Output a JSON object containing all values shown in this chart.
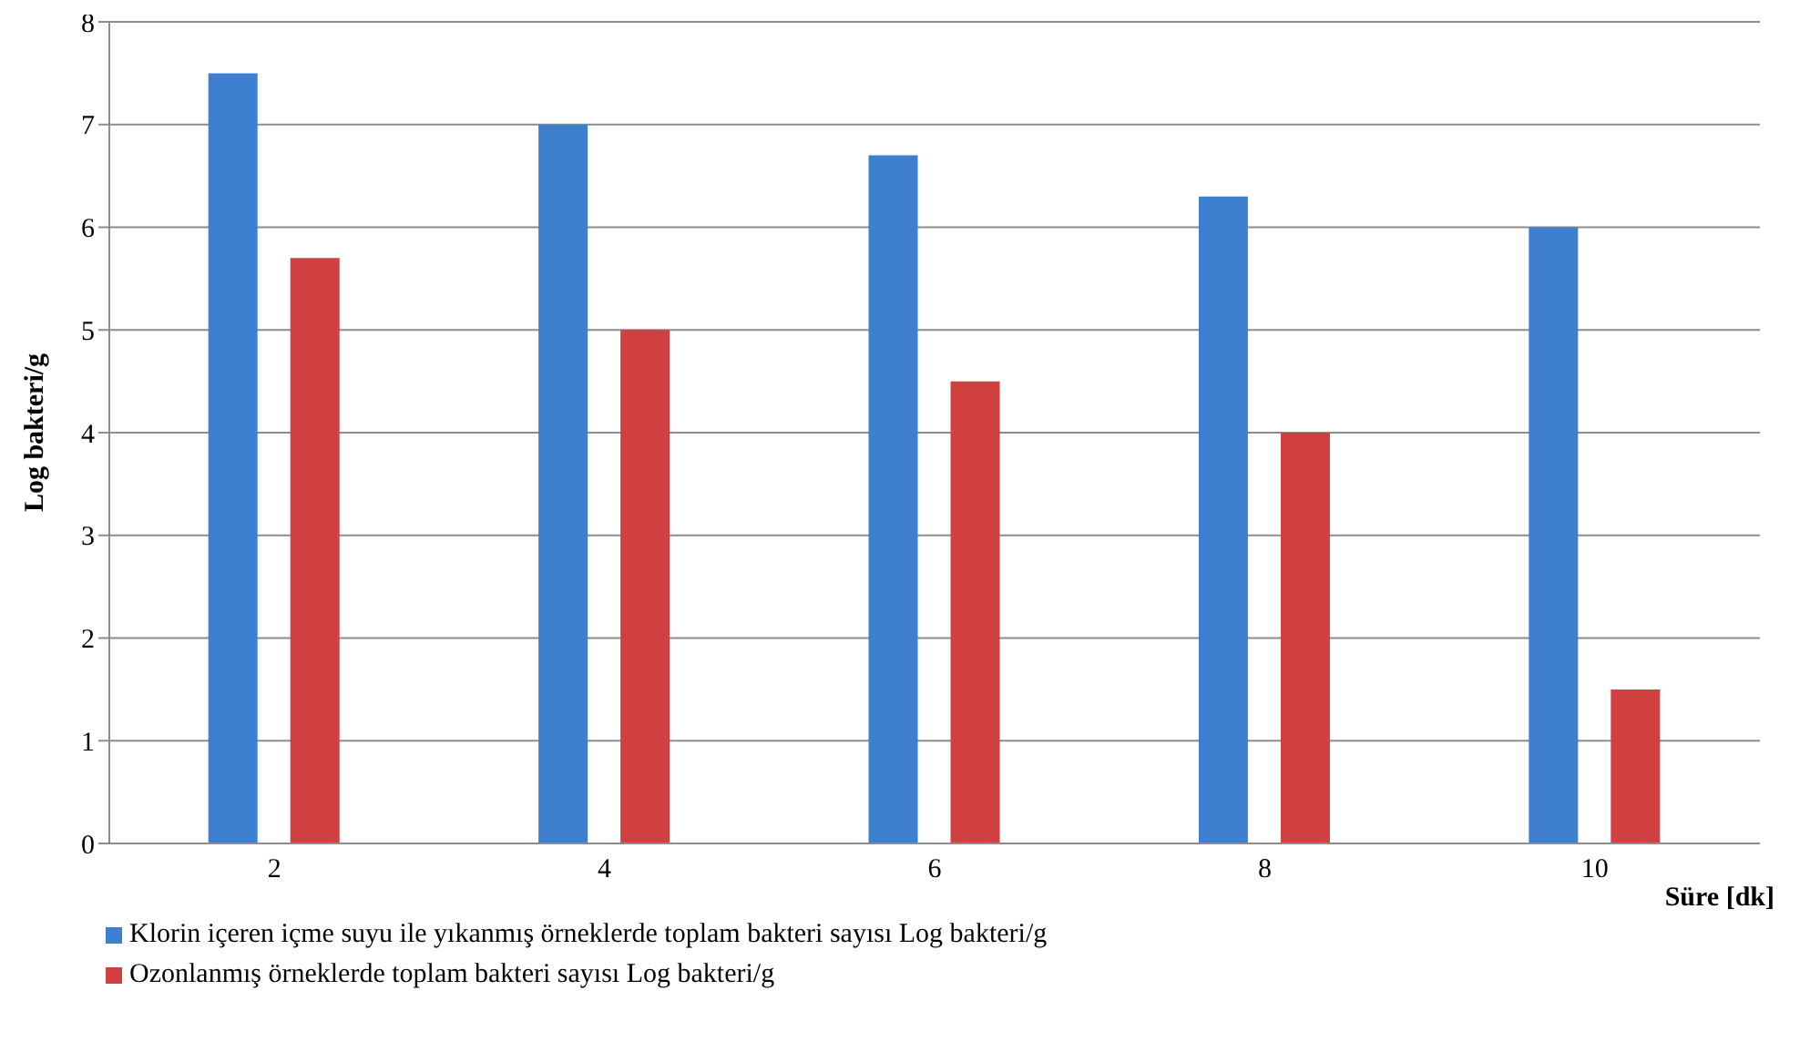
{
  "chart_data": {
    "type": "bar",
    "xlabel": "Süre [dk]",
    "ylabel": "Log bakteri/g",
    "categories": [
      "2",
      "4",
      "6",
      "8",
      "10"
    ],
    "series": [
      {
        "name": "Klorin içeren içme suyu ile yıkanmış örneklerde toplam bakteri sayısı Log bakteri/g",
        "color": "#3f7fd0",
        "values": [
          7.5,
          7.0,
          6.7,
          6.3,
          6.0
        ]
      },
      {
        "name": "Ozonlanmış örneklerde toplam bakteri sayısı Log bakteri/g",
        "color": "#d04040",
        "values": [
          5.7,
          5.0,
          4.5,
          4.0,
          1.5
        ]
      }
    ],
    "ylim": [
      0,
      8
    ],
    "yticks": [
      0,
      1,
      2,
      3,
      4,
      5,
      6,
      7,
      8
    ],
    "grid": "y",
    "legend": "bottom left"
  }
}
